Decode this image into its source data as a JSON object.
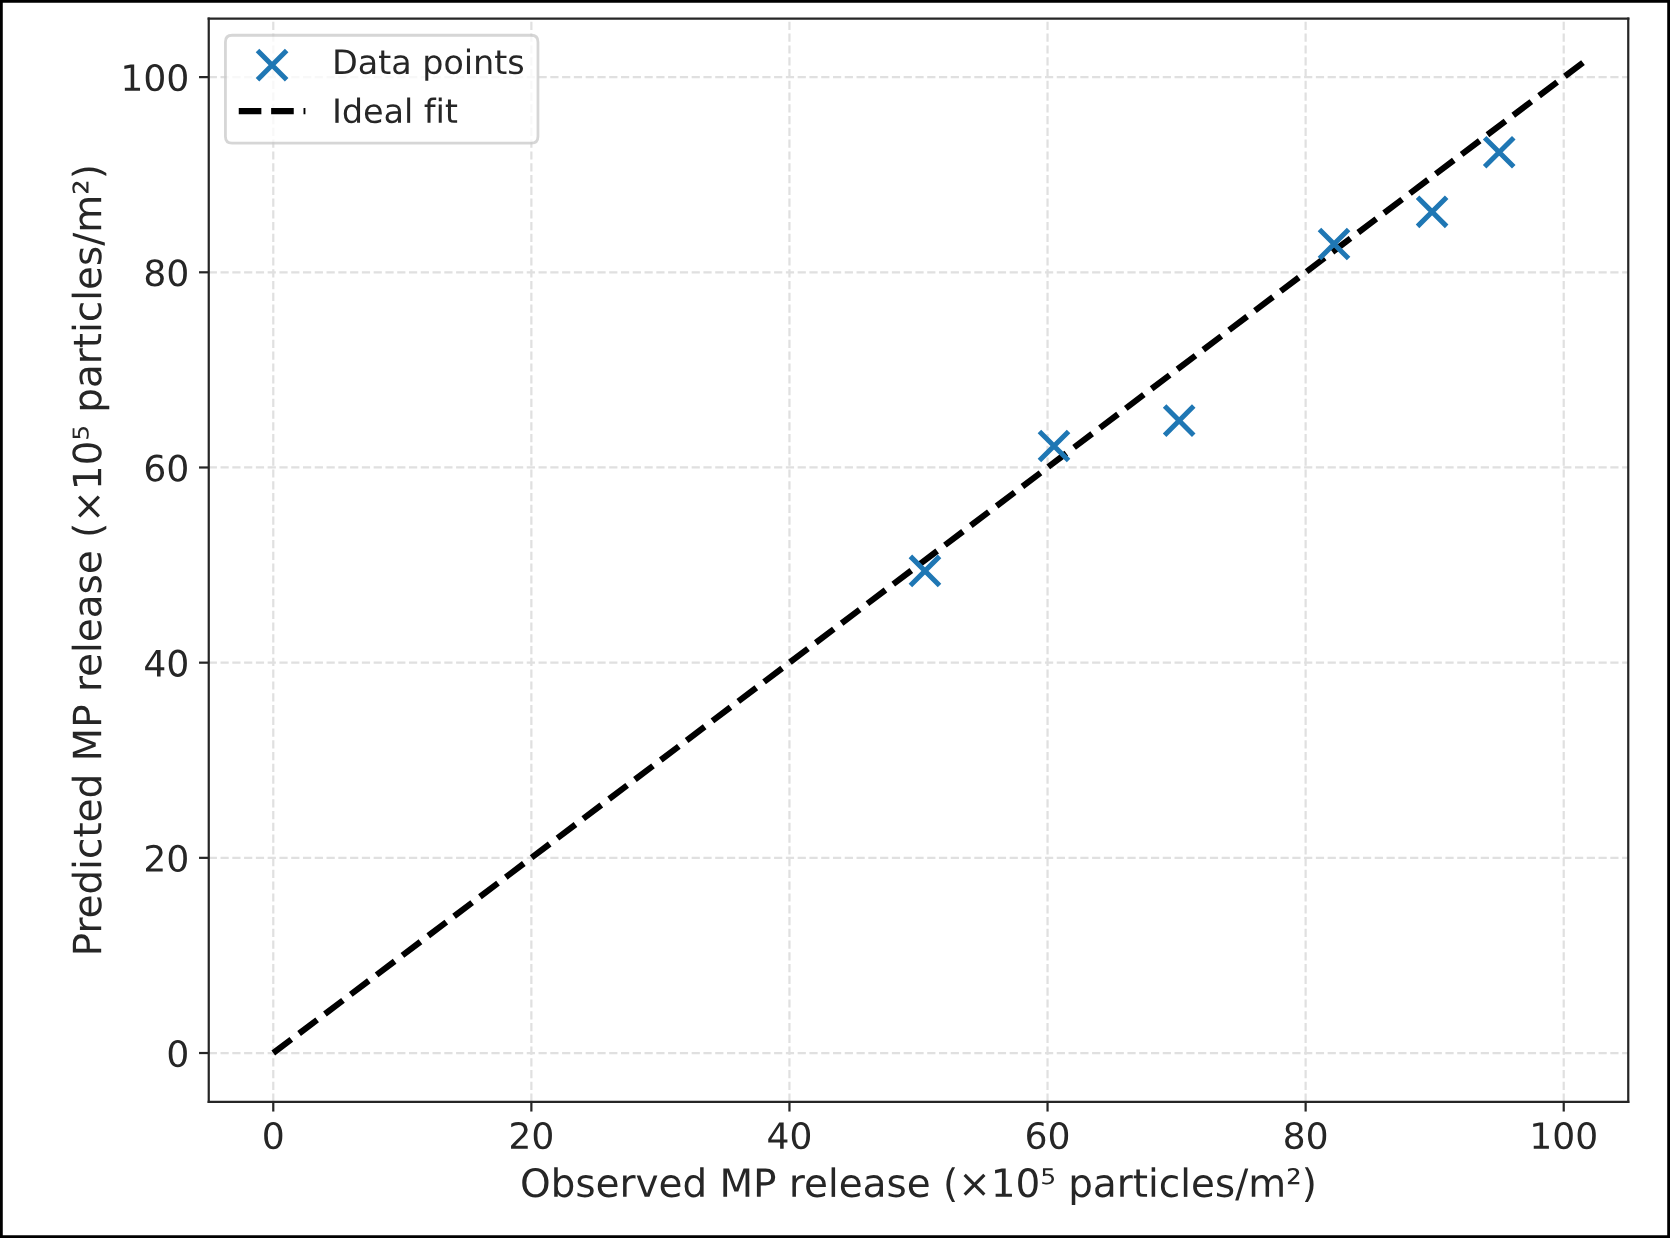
{
  "chart_data": {
    "type": "scatter",
    "xlabel": "Observed MP release (×10⁵ particles/m²)",
    "ylabel": "Predicted MP release (×10⁵ particles/m²)",
    "series": [
      {
        "name": "Data points",
        "color": "#1f77b4",
        "marker": "cross",
        "x": [
          50.5,
          60.5,
          70.2,
          82.2,
          89.8,
          95.0
        ],
        "values": [
          49.4,
          62.2,
          64.8,
          82.9,
          86.2,
          92.3
        ]
      },
      {
        "name": "Ideal fit",
        "type": "line",
        "color": "#000000",
        "line_style": "dashed",
        "marker": "none",
        "x": [
          0,
          101.5
        ],
        "values": [
          0,
          101.5
        ]
      }
    ],
    "xlim": [
      -5,
      105
    ],
    "ylim": [
      -5,
      106
    ],
    "xticks": [
      0,
      20,
      40,
      60,
      80,
      100
    ],
    "yticks": [
      0,
      20,
      40,
      60,
      80,
      100
    ],
    "grid": true,
    "legend": "top left"
  }
}
